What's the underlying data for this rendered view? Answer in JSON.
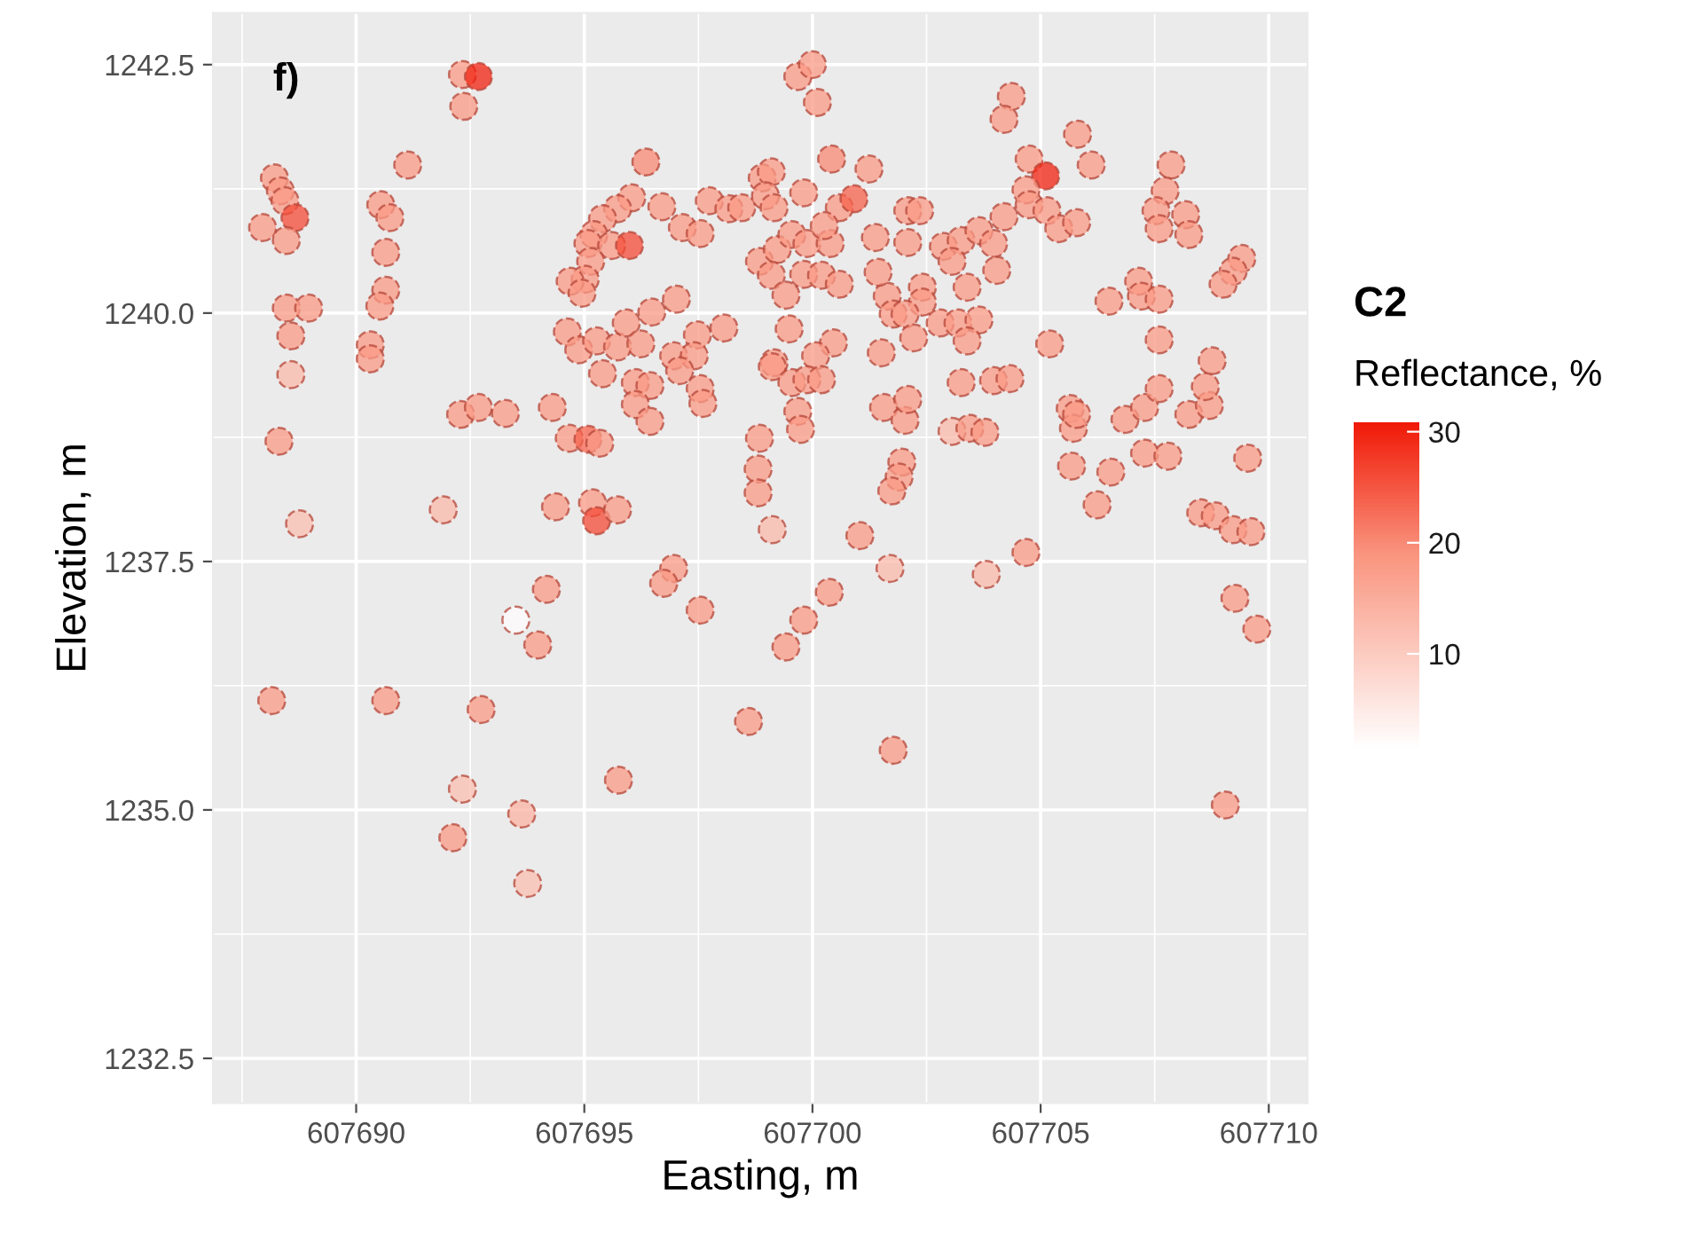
{
  "chart_data": {
    "type": "scatter",
    "title": "f)",
    "xlabel": "Easting, m",
    "ylabel": "Elevation, m",
    "legend_title": "C2",
    "clabel": "Reflectance, %",
    "xlim": [
      607686.86,
      607710.85
    ],
    "xticks": [
      607690,
      607695,
      607700,
      607705,
      607710
    ],
    "ylim": [
      1232.05,
      1243.02
    ],
    "yticks": [
      {
        "value": 1232.5,
        "label": "1232.5"
      },
      {
        "value": 1235,
        "label": "1235.0"
      },
      {
        "value": 1237.5,
        "label": "1237.5"
      },
      {
        "value": 1240,
        "label": "1240.0"
      },
      {
        "value": 1242.5,
        "label": "1242.5"
      }
    ],
    "clim": [
      1.5,
      30.8
    ],
    "cticks": [
      10,
      20,
      30
    ],
    "grid": true,
    "marker": "circle",
    "x": [
      607688.21,
      607688.34,
      607688.44,
      607688.66,
      607687.95,
      607688.47,
      607688.47,
      607688.96,
      607688.57,
      607688.57,
      607690.54,
      607690.74,
      607690.65,
      607690.65,
      607690.52,
      607690.31,
      607690.31,
      607691.13,
      607692.33,
      607692.68,
      607692.36,
      607696.35,
      607696.04,
      607695.73,
      607695.4,
      607695.21,
      607695.08,
      607695.6,
      607695.99,
      607695.14,
      607695.02,
      607694.69,
      607694.95,
      607696.7,
      607697.15,
      607697.54,
      607697.02,
      607696.48,
      607698.06,
      607697.48,
      607697.74,
      607698.17,
      607698.45,
      607698.9,
      607699.1,
      607698.97,
      607699.16,
      607699.81,
      607700.42,
      607701.24,
      607699.68,
      607700.0,
      607700.11,
      607698.84,
      607699.23,
      607699.55,
      607699.88,
      607699.1,
      607699.81,
      607700.2,
      607700.59,
      607699.42,
      607700.39,
      607700.59,
      607700.91,
      607700.26,
      607694.63,
      607694.88,
      607695.27,
      607695.73,
      607695.92,
      607696.24,
      607696.96,
      607697.41,
      607699.49,
      607700.46,
      607700.07,
      607699.16,
      607704.36,
      607704.2,
      607705.81,
      607706.11,
      607704.75,
      607705.11,
      607704.68,
      607704.75,
      607705.14,
      607705.4,
      607705.79,
      607704.2,
      607702.09,
      607702.35,
      607701.38,
      607702.09,
      607702.87,
      607703.26,
      607703.65,
      607703.06,
      607703.97,
      607704.04,
      607703.39,
      607702.41,
      607702.41,
      607701.64,
      607701.77,
      607702.03,
      607701.44,
      607702.8,
      607703.19,
      607703.65,
      607703.39,
      607702.22,
      607701.51,
      607705.2,
      607707.86,
      607707.73,
      607707.53,
      607707.6,
      607708.18,
      607708.25,
      607707.15,
      607707.21,
      607707.6,
      607706.5,
      607707.6,
      607708.76,
      607709.41,
      607709.22,
      607709.0,
      607688.31,
      607688.76,
      607692.29,
      607692.68,
      607693.27,
      607694.3,
      607694.67,
      607695.08,
      607695.34,
      607691.91,
      607694.37,
      607695.18,
      607695.27,
      607695.73,
      607695.4,
      607696.12,
      607696.44,
      607696.12,
      607696.44,
      607697.09,
      607697.54,
      607697.6,
      607696.96,
      607696.74,
      607694.17,
      607693.5,
      607693.98,
      607697.54,
      607688.15,
      607690.65,
      607692.74,
      607698.6,
      607699.12,
      607699.55,
      607699.88,
      607700.2,
      607699.68,
      607699.74,
      607698.84,
      607698.81,
      607698.81,
      607699.12,
      607701.04,
      607700.37,
      607699.81,
      607699.42,
      607701.56,
      607702.03,
      607702.09,
      607701.96,
      607701.9,
      607701.74,
      607701.7,
      607703.26,
      607703.97,
      607704.33,
      607703.06,
      607703.45,
      607703.78,
      607705.65,
      607705.72,
      607705.79,
      607706.85,
      607707.28,
      607707.6,
      607708.25,
      607708.7,
      607708.61,
      607705.68,
      607706.54,
      607706.24,
      607707.28,
      607707.79,
      607709.54,
      607708.51,
      607708.83,
      607709.22,
      607709.61,
      607704.68,
      607703.81,
      607709.26,
      607709.74,
      607701.77,
      607709.05,
      607692.33,
      607692.12,
      607693.63,
      607693.76,
      607695.75
    ],
    "values": [
      1241.36,
      1241.23,
      1241.13,
      1240.96,
      1240.86,
      1240.73,
      1240.05,
      1240.05,
      1239.77,
      1239.38,
      1241.09,
      1240.96,
      1240.61,
      1240.23,
      1240.07,
      1239.68,
      1239.54,
      1241.49,
      1242.4,
      1242.38,
      1242.08,
      1241.52,
      1241.16,
      1241.05,
      1240.95,
      1240.79,
      1240.7,
      1240.68,
      1240.68,
      1240.52,
      1240.34,
      1240.32,
      1240.2,
      1241.07,
      1240.86,
      1240.8,
      1240.14,
      1240.01,
      1239.85,
      1239.78,
      1241.13,
      1241.05,
      1241.06,
      1241.36,
      1241.42,
      1241.18,
      1241.06,
      1241.21,
      1241.55,
      1241.45,
      1242.38,
      1242.5,
      1242.12,
      1240.52,
      1240.64,
      1240.79,
      1240.7,
      1240.38,
      1240.39,
      1240.38,
      1240.29,
      1240.18,
      1240.7,
      1241.06,
      1241.15,
      1240.88,
      1239.81,
      1239.63,
      1239.72,
      1239.66,
      1239.9,
      1239.69,
      1239.57,
      1239.57,
      1239.84,
      1239.7,
      1239.57,
      1239.5,
      1242.18,
      1241.95,
      1241.8,
      1241.49,
      1241.55,
      1241.38,
      1241.24,
      1241.09,
      1241.03,
      1240.85,
      1240.91,
      1240.97,
      1241.03,
      1241.03,
      1240.76,
      1240.71,
      1240.67,
      1240.73,
      1240.83,
      1240.52,
      1240.7,
      1240.43,
      1240.26,
      1240.26,
      1240.11,
      1240.17,
      1239.99,
      1239.99,
      1240.41,
      1239.9,
      1239.9,
      1239.93,
      1239.72,
      1239.75,
      1239.6,
      1239.69,
      1241.49,
      1241.23,
      1241.03,
      1240.85,
      1240.99,
      1240.79,
      1240.32,
      1240.17,
      1240.14,
      1240.12,
      1239.73,
      1239.52,
      1240.55,
      1240.42,
      1240.29,
      1238.71,
      1237.88,
      1238.98,
      1239.05,
      1238.99,
      1239.05,
      1238.74,
      1238.73,
      1238.69,
      1238.02,
      1238.05,
      1238.09,
      1237.91,
      1238.02,
      1239.39,
      1239.3,
      1239.27,
      1239.08,
      1238.91,
      1239.42,
      1239.24,
      1239.09,
      1237.43,
      1237.28,
      1237.22,
      1236.91,
      1236.66,
      1237.01,
      1236.1,
      1236.1,
      1236.01,
      1235.89,
      1239.46,
      1239.3,
      1239.33,
      1239.33,
      1239.01,
      1238.83,
      1238.74,
      1238.43,
      1238.19,
      1237.82,
      1237.76,
      1237.19,
      1236.91,
      1236.64,
      1239.05,
      1238.92,
      1239.13,
      1238.5,
      1238.35,
      1238.21,
      1237.43,
      1239.3,
      1239.32,
      1239.34,
      1238.81,
      1238.84,
      1238.8,
      1239.04,
      1238.84,
      1238.98,
      1238.93,
      1239.05,
      1239.24,
      1238.98,
      1239.07,
      1239.26,
      1238.46,
      1238.4,
      1238.07,
      1238.59,
      1238.56,
      1238.54,
      1237.99,
      1237.96,
      1237.82,
      1237.8,
      1237.59,
      1237.37,
      1237.13,
      1236.82,
      1235.6,
      1235.05,
      1235.21,
      1234.72,
      1234.96,
      1234.26,
      1235.3
    ],
    "cvalues": [
      18,
      18,
      18,
      26,
      18,
      18,
      18,
      18,
      18,
      13,
      18,
      18,
      18,
      18,
      18,
      18,
      18,
      18,
      18,
      30,
      18,
      20,
      18,
      18,
      18,
      18,
      18,
      18,
      26,
      18,
      18,
      18,
      18,
      18,
      18,
      18,
      18,
      18,
      18,
      18,
      18,
      18,
      18,
      18,
      18,
      18,
      18,
      18,
      20,
      18,
      18,
      18,
      18,
      18,
      18,
      18,
      18,
      18,
      18,
      18,
      18,
      18,
      18,
      18,
      24,
      18,
      18,
      18,
      18,
      18,
      18,
      18,
      18,
      18,
      18,
      18,
      18,
      18,
      18,
      18,
      18,
      18,
      18,
      30,
      18,
      18,
      18,
      18,
      18,
      18,
      18,
      18,
      18,
      18,
      18,
      18,
      18,
      18,
      18,
      18,
      18,
      18,
      18,
      18,
      18,
      18,
      18,
      18,
      18,
      18,
      18,
      18,
      18,
      18,
      18,
      18,
      18,
      18,
      18,
      18,
      18,
      18,
      18,
      18,
      18,
      18,
      18,
      18,
      18,
      18,
      12,
      18,
      18,
      18,
      18,
      18,
      24,
      18,
      13,
      18,
      18,
      26,
      18,
      18,
      18,
      18,
      18,
      18,
      18,
      18,
      18,
      18,
      18,
      18,
      2,
      18,
      18,
      18,
      18,
      18,
      18,
      18,
      18,
      18,
      18,
      18,
      18,
      18,
      18,
      18,
      13,
      18,
      18,
      18,
      18,
      18,
      18,
      18,
      18,
      18,
      18,
      13,
      18,
      18,
      18,
      13,
      18,
      18,
      18,
      18,
      18,
      18,
      18,
      18,
      18,
      18,
      18,
      18,
      18,
      18,
      18,
      18,
      18,
      18,
      18,
      18,
      18,
      18,
      13,
      18,
      18,
      18,
      18,
      12,
      18,
      14,
      12,
      18
    ]
  }
}
